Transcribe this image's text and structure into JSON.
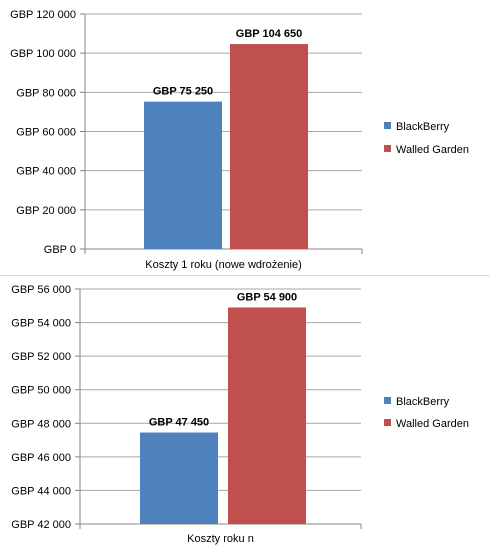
{
  "chart_data": [
    {
      "type": "bar",
      "categories": [
        "Koszty 1 roku (nowe wdrożenie)"
      ],
      "series": [
        {
          "name": "BlackBerry",
          "values": [
            75250
          ],
          "color": "#4f81bd",
          "label": "GBP 75 250"
        },
        {
          "name": "Walled Garden",
          "values": [
            104650
          ],
          "color": "#c0504d",
          "label": "GBP 104 650"
        }
      ],
      "ylim": [
        0,
        120000
      ],
      "yticks": [
        0,
        20000,
        40000,
        60000,
        80000,
        100000,
        120000
      ],
      "ytick_labels": [
        "GBP 0",
        "GBP 20 000",
        "GBP 40 000",
        "GBP 60 000",
        "GBP 80 000",
        "GBP 100 000",
        "GBP 120 000"
      ],
      "grid": true,
      "legend_position": "right"
    },
    {
      "type": "bar",
      "categories": [
        "Koszty roku n"
      ],
      "series": [
        {
          "name": "BlackBerry",
          "values": [
            47450
          ],
          "color": "#4f81bd",
          "label": "GBP 47 450"
        },
        {
          "name": "Walled Garden",
          "values": [
            54900
          ],
          "color": "#c0504d",
          "label": "GBP 54 900"
        }
      ],
      "ylim": [
        42000,
        56000
      ],
      "yticks": [
        42000,
        44000,
        46000,
        48000,
        50000,
        52000,
        54000,
        56000
      ],
      "ytick_labels": [
        "GBP 42 000",
        "GBP 44 000",
        "GBP 46 000",
        "GBP 48 000",
        "GBP 50 000",
        "GBP 52 000",
        "GBP 54 000",
        "GBP 56 000"
      ],
      "grid": true,
      "legend_position": "right"
    }
  ]
}
